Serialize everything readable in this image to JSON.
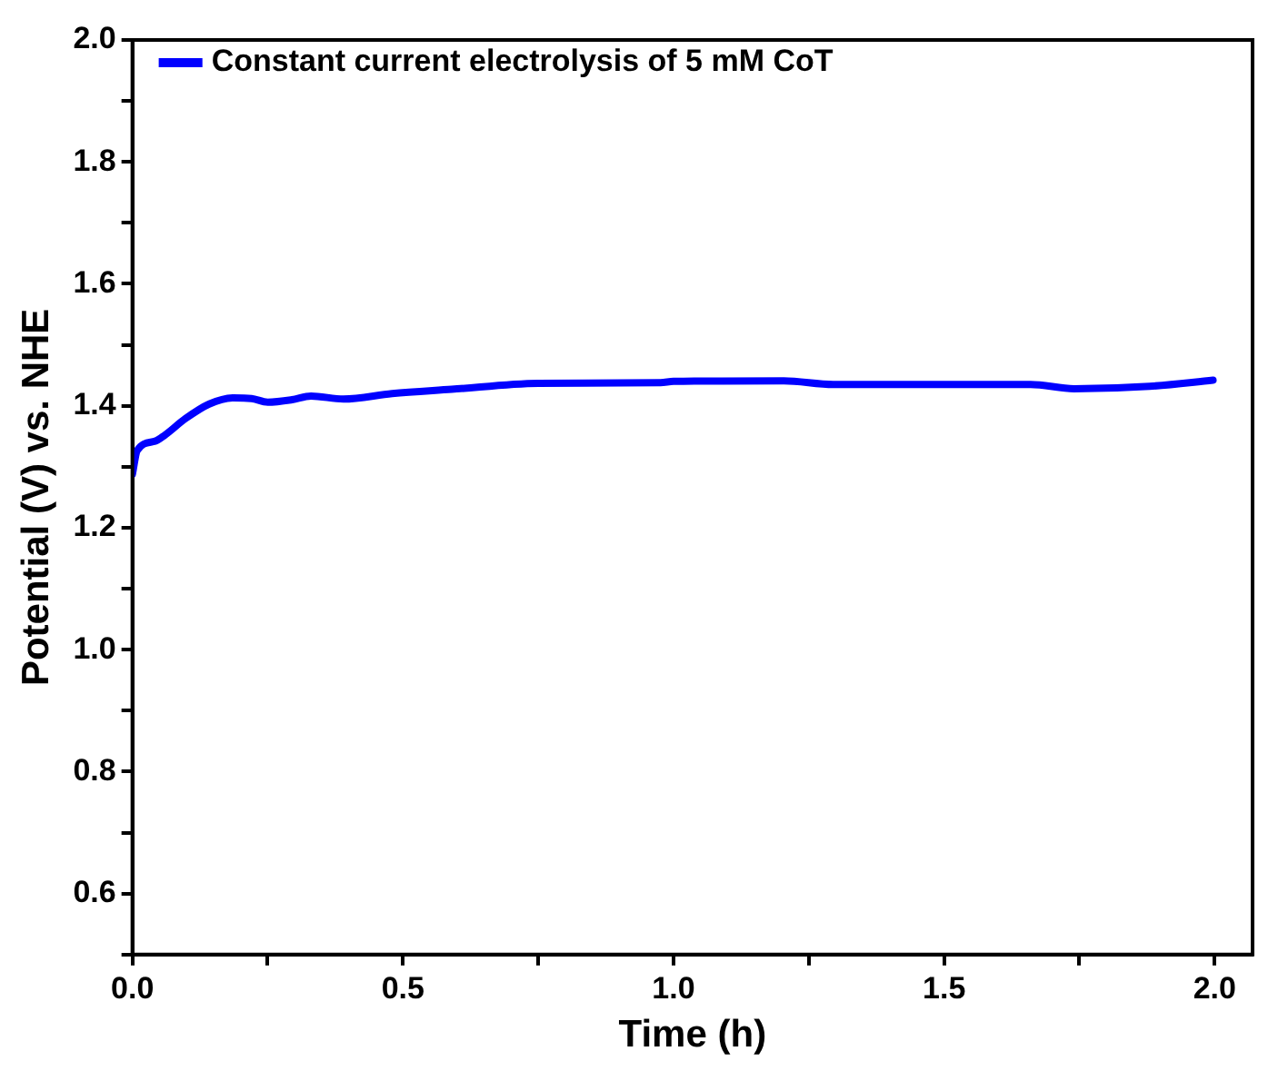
{
  "chart_data": {
    "type": "line",
    "xlabel": "Time (h)",
    "ylabel": "Potential (V) vs. NHE",
    "legend": "top left",
    "grid": false,
    "marker": "none",
    "line_style": "solid",
    "xlim": [
      0,
      2.07
    ],
    "ylim": [
      0.5,
      2.0
    ],
    "xticks": [
      {
        "value": 0,
        "label": "0.0"
      },
      {
        "value": 0.25,
        "label": null
      },
      {
        "value": 0.5,
        "label": "0.5"
      },
      {
        "value": 0.75,
        "label": null
      },
      {
        "value": 1,
        "label": "1.0"
      },
      {
        "value": 1.25,
        "label": null
      },
      {
        "value": 1.5,
        "label": "1.5"
      },
      {
        "value": 1.75,
        "label": null
      },
      {
        "value": 2,
        "label": "2.0"
      }
    ],
    "yticks": [
      {
        "value": 0.5,
        "label": null
      },
      {
        "value": 0.6,
        "label": "0.6"
      },
      {
        "value": 0.7,
        "label": null
      },
      {
        "value": 0.8,
        "label": "0.8"
      },
      {
        "value": 0.9,
        "label": null
      },
      {
        "value": 1.0,
        "label": "1.0"
      },
      {
        "value": 1.1,
        "label": null
      },
      {
        "value": 1.2,
        "label": "1.2"
      },
      {
        "value": 1.3,
        "label": null
      },
      {
        "value": 1.4,
        "label": "1.4"
      },
      {
        "value": 1.5,
        "label": null
      },
      {
        "value": 1.6,
        "label": "1.6"
      },
      {
        "value": 1.7,
        "label": null
      },
      {
        "value": 1.8,
        "label": "1.8"
      },
      {
        "value": 1.9,
        "label": null
      },
      {
        "value": 2.0,
        "label": "2.0"
      }
    ],
    "series": [
      {
        "name": "Constant current electrolysis of 5 mM CoT",
        "color": "#0000ff",
        "x": [
          0,
          0.009,
          0.042,
          0.06,
          0.098,
          0.142,
          0.187,
          0.22,
          0.25,
          0.295,
          0.33,
          0.39,
          0.48,
          0.59,
          0.75,
          0.976,
          1.0,
          1.204,
          1.295,
          1.66,
          1.74,
          1.88,
          1.997
        ],
        "values": [
          1.288,
          1.327,
          1.342,
          1.352,
          1.379,
          1.403,
          1.413,
          1.412,
          1.406,
          1.41,
          1.416,
          1.411,
          1.42,
          1.427,
          1.437,
          1.438,
          1.44,
          1.441,
          1.435,
          1.435,
          1.428,
          1.432,
          1.442
        ]
      }
    ]
  }
}
